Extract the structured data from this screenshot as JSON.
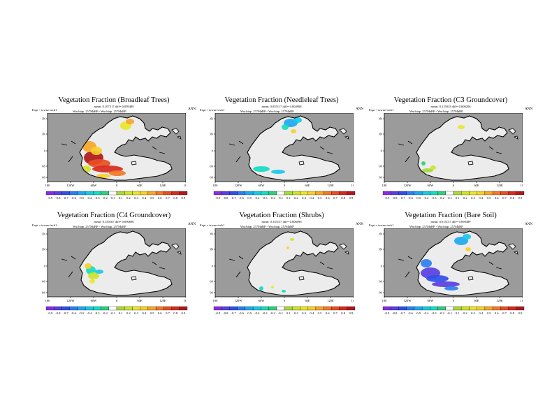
{
  "colors": {
    "ocean": "#9b9b9b",
    "land": "#ececec",
    "coast": "#000000",
    "palette": [
      "#8a2be2",
      "#5a3fe0",
      "#2f4fe8",
      "#2d7ff0",
      "#1ea8f0",
      "#17c9e8",
      "#15dcc0",
      "#2fcf7a",
      "#ffffff",
      "#a7d93a",
      "#cfe22a",
      "#e8e62a",
      "#f7cf2a",
      "#f7a52a",
      "#f07a28",
      "#e84e22",
      "#d62a1e",
      "#b0181a"
    ]
  },
  "chart_data": [
    {
      "type": "heatmap",
      "title": "Vegetation Fraction (Broadleaf Trees)",
      "stats": "mean: 0.107517 diff= 0.099489",
      "expt": "Expt = tewne-teck1",
      "annot": "Wuchiap. 257MaBP - Wuchiap. 257MaBP",
      "season": "ANN",
      "xticks": [
        "180",
        "120W",
        "60W",
        "0",
        "60E",
        "120E",
        "180"
      ],
      "yticks": [
        "60N",
        "40N",
        "0",
        "40S",
        "60S"
      ],
      "colorbar": [
        "-0.9",
        "-0.8",
        "-0.7",
        "-0.6",
        "-0.5",
        "-0.4",
        "-0.3",
        "-0.2",
        "-0.1",
        "0.1",
        "0.2",
        "0.3",
        "0.4",
        "0.5",
        "0.6",
        "0.7",
        "0.8",
        "0.9"
      ],
      "anomaly": "positive-west",
      "anomaly_regions": [
        "west-tropics",
        "south-central"
      ]
    },
    {
      "type": "heatmap",
      "title": "Vegetation Fraction (Needleleaf Trees)",
      "stats": "mean: 0.055117 diff= 0.004908",
      "expt": "Expt = tewne-teck1",
      "annot": "Wuchiap. 257MaBP - Wuchiap. 257MaBP",
      "season": "ANN",
      "xticks": [
        "180",
        "120W",
        "60W",
        "0",
        "60E",
        "120E",
        "180"
      ],
      "yticks": [
        "60N",
        "40N",
        "0",
        "40S",
        "60S"
      ],
      "colorbar": [
        "-0.9",
        "-0.8",
        "-0.7",
        "-0.6",
        "-0.5",
        "-0.4",
        "-0.3",
        "-0.2",
        "-0.1",
        "0.1",
        "0.2",
        "0.3",
        "0.4",
        "0.5",
        "0.6",
        "0.7",
        "0.8",
        "0.9"
      ],
      "anomaly": "negative-north"
    },
    {
      "type": "heatmap",
      "title": "Vegetation Fraction (C3 Groundcover)",
      "stats": "mean: 0.115015 diff= 0.000206",
      "expt": "Expt = tewne-teck1",
      "annot": "Wuchiap. 257MaBP - Wuchiap. 257MaBP",
      "season": "ANN",
      "xticks": [
        "180",
        "120W",
        "60W",
        "0",
        "60E",
        "120E",
        "180"
      ],
      "yticks": [
        "60N",
        "40N",
        "0",
        "40S",
        "60S"
      ],
      "colorbar": [
        "-0.9",
        "-0.8",
        "-0.7",
        "-0.6",
        "-0.5",
        "-0.4",
        "-0.3",
        "-0.2",
        "-0.1",
        "0.1",
        "0.2",
        "0.3",
        "0.4",
        "0.5",
        "0.6",
        "0.7",
        "0.8",
        "0.9"
      ],
      "anomaly": "weak-mixed"
    },
    {
      "type": "heatmap",
      "title": "Vegetation Fraction (C4 Groundcover)",
      "stats": "mean: 0.150167 diff= 0.090696",
      "expt": "Expt = tewne-teck1",
      "annot": "Wuchiap. 257MaBP - Wuchiap. 257MaBP",
      "season": "ANN",
      "xticks": [
        "180",
        "120W",
        "60W",
        "0",
        "60E",
        "120E",
        "180"
      ],
      "yticks": [
        "60N",
        "40N",
        "0",
        "40S",
        "60S"
      ],
      "colorbar": [
        "-0.9",
        "-0.8",
        "-0.7",
        "-0.6",
        "-0.5",
        "-0.4",
        "-0.3",
        "-0.2",
        "-0.1",
        "0.1",
        "0.2",
        "0.3",
        "0.4",
        "0.5",
        "0.6",
        "0.7",
        "0.8",
        "0.9"
      ],
      "anomaly": "mixed-west"
    },
    {
      "type": "heatmap",
      "title": "Vegetation Fraction (Shrubs)",
      "stats": "mean: 0.155157 diff= 0.006096",
      "expt": "Expt = tewne-teck1",
      "annot": "Wuchiap. 257MaBP - Wuchiap. 257MaBP",
      "season": "ANN",
      "xticks": [
        "180",
        "120W",
        "60W",
        "0",
        "60E",
        "120E",
        "180"
      ],
      "yticks": [
        "60N",
        "40N",
        "0",
        "40S",
        "60S"
      ],
      "colorbar": [
        "-0.9",
        "-0.8",
        "-0.7",
        "-0.6",
        "-0.5",
        "-0.4",
        "-0.3",
        "-0.2",
        "-0.1",
        "0.1",
        "0.2",
        "0.3",
        "0.4",
        "0.5",
        "0.6",
        "0.7",
        "0.8",
        "0.9"
      ],
      "anomaly": "sparse"
    },
    {
      "type": "heatmap",
      "title": "Vegetation Fraction (Bare Soil)",
      "stats": "mean: 0.015157 diff= 0.099489",
      "expt": "Expt = tewne-teck1",
      "annot": "Wuchiap. 257MaBP - Wuchiap. 257MaBP",
      "season": "ANN",
      "xticks": [
        "180",
        "120W",
        "60W",
        "0",
        "60E",
        "120E",
        "180"
      ],
      "yticks": [
        "60N",
        "40N",
        "0",
        "40S",
        "60S"
      ],
      "colorbar": [
        "-0.9",
        "-0.8",
        "-0.7",
        "-0.6",
        "-0.5",
        "-0.4",
        "-0.3",
        "-0.2",
        "-0.1",
        "0.1",
        "0.2",
        "0.3",
        "0.4",
        "0.5",
        "0.6",
        "0.7",
        "0.8",
        "0.9"
      ],
      "anomaly": "negative-west"
    }
  ]
}
